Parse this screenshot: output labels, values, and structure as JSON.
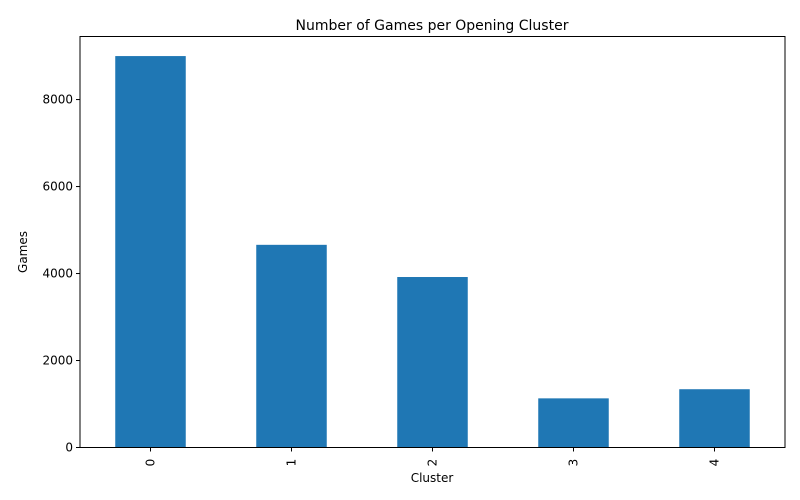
{
  "chart_data": {
    "type": "bar",
    "title": "Number of Games per Opening Cluster",
    "xlabel": "Cluster",
    "ylabel": "Games",
    "categories": [
      "0",
      "1",
      "2",
      "3",
      "4"
    ],
    "values": [
      9000,
      4660,
      3920,
      1130,
      1340
    ],
    "ylim": [
      0,
      9450
    ],
    "yticks": [
      "0",
      "2000",
      "4000",
      "6000",
      "8000"
    ],
    "bar_color": "#1f77b4",
    "grid": false,
    "legend": "none"
  }
}
